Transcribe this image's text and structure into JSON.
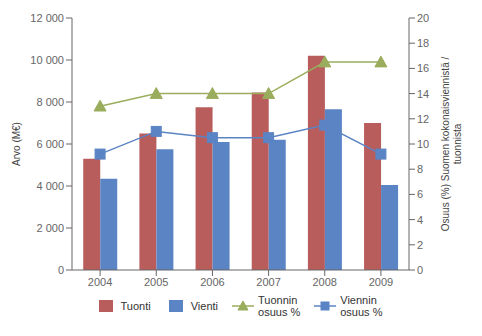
{
  "chart_data": {
    "type": "bar",
    "categories": [
      "2004",
      "2005",
      "2006",
      "2007",
      "2008",
      "2009"
    ],
    "ylabel": "Arvo (M€)",
    "y2label": "Osuus (%) Suomen kokonaisviennistä /\ntuonnista",
    "ylim": [
      0,
      12000
    ],
    "yticks": [
      0,
      {
        "value": 2000,
        "label": "2 000"
      },
      {
        "value": 4000,
        "label": "4 000"
      },
      {
        "value": 6000,
        "label": "6 000"
      },
      {
        "value": 8000,
        "label": "8 000"
      },
      {
        "value": 10000,
        "label": "10 000"
      },
      {
        "value": 12000,
        "label": "12 000"
      }
    ],
    "y2lim": [
      0,
      20
    ],
    "y2ticks": [
      0,
      2,
      4,
      6,
      8,
      10,
      12,
      14,
      16,
      18,
      20
    ],
    "grid": false,
    "legend": "bottom",
    "series": [
      {
        "name": "Tuonti",
        "color": "#b85c5c",
        "values": [
          5300,
          6500,
          7750,
          8450,
          10200,
          7000
        ]
      },
      {
        "name": "Vienti",
        "color": "#5b84c4",
        "values": [
          4350,
          5750,
          6100,
          6200,
          7650,
          4050
        ]
      },
      {
        "name": "Tuonnin\nosuus %",
        "type": "line",
        "axis": "y2",
        "color": "#9aad5c",
        "marker": "triangle",
        "values": [
          13.0,
          14.0,
          14.0,
          14.0,
          16.5,
          16.5
        ]
      },
      {
        "name": "Viennin\nosuus %",
        "type": "line",
        "axis": "y2",
        "color": "#5b84c4",
        "marker": "square",
        "values": [
          9.2,
          11.0,
          10.5,
          10.5,
          11.5,
          9.2
        ]
      }
    ]
  }
}
